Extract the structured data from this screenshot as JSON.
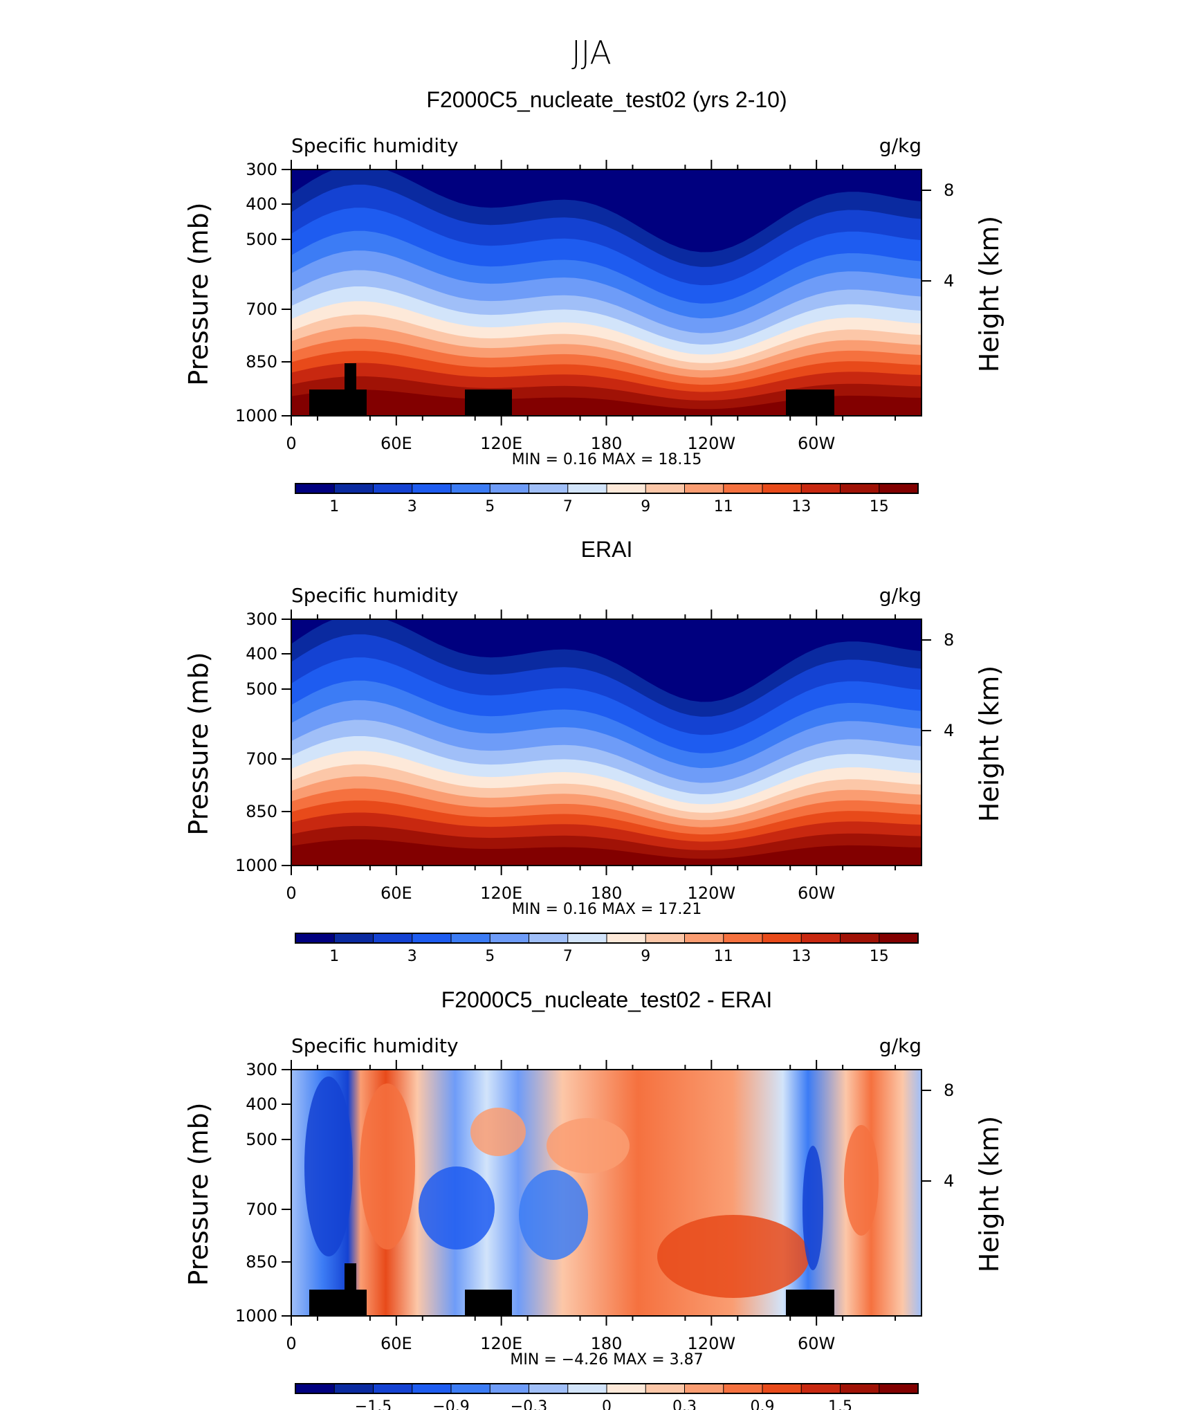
{
  "figure_title": "JJA",
  "chart_data": [
    {
      "type": "heatmap",
      "title": "F2000C5_nucleate_test02 (yrs 2-10)",
      "left_label": "Specific humidity",
      "right_label": "g/kg",
      "ylabel": "Pressure (mb)",
      "y2label": "Height (km)",
      "x_ticks": [
        "0",
        "60E",
        "120E",
        "180",
        "120W",
        "60W"
      ],
      "y_ticks": [
        "300",
        "400",
        "500",
        "700",
        "850",
        "1000"
      ],
      "y2_ticks": [
        "8",
        "4"
      ],
      "stats": "MIN =    0.16   MAX =   18.15",
      "colorbar_labels": [
        "1",
        "3",
        "5",
        "7",
        "9",
        "11",
        "13",
        "15"
      ],
      "colorbar_colors": [
        "#00007f",
        "#0a2aa0",
        "#1442d2",
        "#1e5cf0",
        "#3c7cf5",
        "#6e9cf8",
        "#a0bff8",
        "#d2e4fa",
        "#fde9d9",
        "#fcc7a8",
        "#fa9d72",
        "#f5713f",
        "#e84a1a",
        "#c82810",
        "#a01206",
        "#820000"
      ]
    },
    {
      "type": "heatmap",
      "title": "ERAI",
      "left_label": "Specific humidity",
      "right_label": "g/kg",
      "ylabel": "Pressure (mb)",
      "y2label": "Height (km)",
      "x_ticks": [
        "0",
        "60E",
        "120E",
        "180",
        "120W",
        "60W"
      ],
      "y_ticks": [
        "300",
        "400",
        "500",
        "700",
        "850",
        "1000"
      ],
      "y2_ticks": [
        "8",
        "4"
      ],
      "stats": "MIN =    0.16   MAX =   17.21",
      "colorbar_labels": [
        "1",
        "3",
        "5",
        "7",
        "9",
        "11",
        "13",
        "15"
      ],
      "colorbar_colors": [
        "#00007f",
        "#0a2aa0",
        "#1442d2",
        "#1e5cf0",
        "#3c7cf5",
        "#6e9cf8",
        "#a0bff8",
        "#d2e4fa",
        "#fde9d9",
        "#fcc7a8",
        "#fa9d72",
        "#f5713f",
        "#e84a1a",
        "#c82810",
        "#a01206",
        "#820000"
      ]
    },
    {
      "type": "heatmap",
      "title": "F2000C5_nucleate_test02 - ERAI",
      "left_label": "Specific humidity",
      "right_label": "g/kg",
      "ylabel": "Pressure (mb)",
      "y2label": "Height (km)",
      "x_ticks": [
        "0",
        "60E",
        "120E",
        "180",
        "120W",
        "60W"
      ],
      "y_ticks": [
        "300",
        "400",
        "500",
        "700",
        "850",
        "1000"
      ],
      "y2_ticks": [
        "8",
        "4"
      ],
      "stats": "MIN =   −4.26   MAX =    3.87",
      "colorbar_labels": [
        "−1.5",
        "−0.9",
        "−0.3",
        "0",
        "0.3",
        "0.9",
        "1.5"
      ],
      "colorbar_colors": [
        "#00007f",
        "#0a2aa0",
        "#1442d2",
        "#1e5cf0",
        "#3c7cf5",
        "#6e9cf8",
        "#a0bff8",
        "#d2e4fa",
        "#fde9d9",
        "#fcc7a8",
        "#fa9d72",
        "#f5713f",
        "#e84a1a",
        "#c82810",
        "#a01206",
        "#820000"
      ]
    }
  ]
}
